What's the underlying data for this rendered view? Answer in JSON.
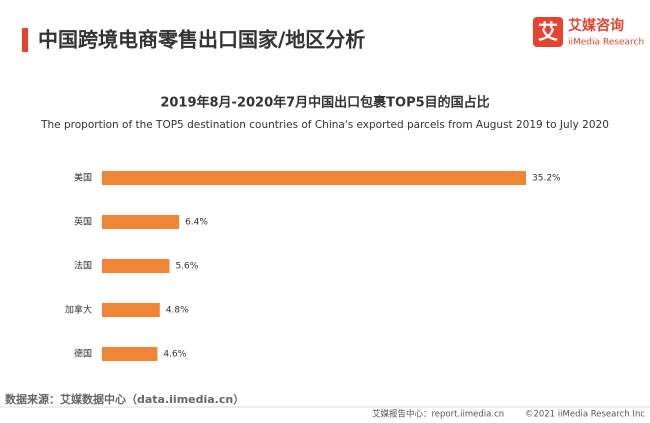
{
  "header": {
    "title": "中国跨境电商零售出口国家/地区分析",
    "logo_mark": "艾",
    "logo_cn": "艾媒咨询",
    "logo_en": "iiMedia Research"
  },
  "chart_data": {
    "type": "bar",
    "orientation": "horizontal",
    "title": "2019年8月-2020年7月中国出口包裹TOP5目的国占比",
    "subtitle": "The proportion of the TOP5 destination countries of China's exported parcels from August 2019 to July 2020",
    "categories": [
      "美国",
      "英国",
      "法国",
      "加拿大",
      "德国"
    ],
    "values": [
      35.2,
      6.4,
      5.6,
      4.8,
      4.6
    ],
    "value_labels": [
      "35.2%",
      "6.4%",
      "5.6%",
      "4.8%",
      "4.6%"
    ],
    "color": "#ef8535"
  },
  "footer": {
    "source": "数据来源：艾媒数据中心（data.iimedia.cn）",
    "report_center": "艾媒报告中心：report.iimedia.cn",
    "copyright": "©2021  iiMedia Research  Inc"
  }
}
